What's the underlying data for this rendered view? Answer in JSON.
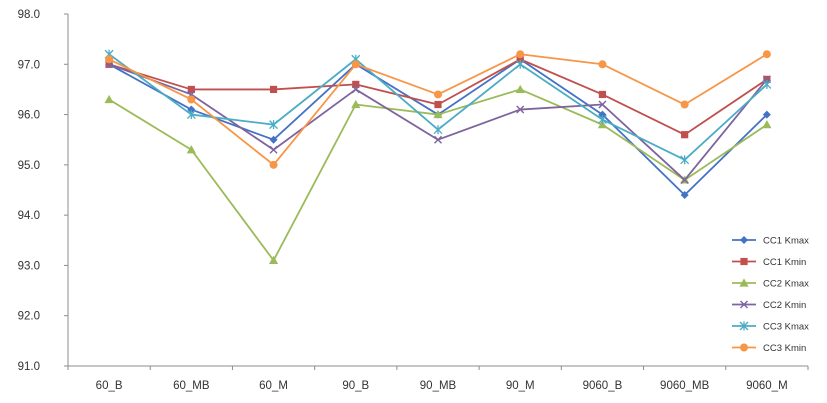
{
  "chart_data": {
    "type": "line",
    "title": "",
    "xlabel": "",
    "ylabel": "",
    "categories": [
      "60_B",
      "60_MB",
      "60_M",
      "90_B",
      "90_MB",
      "90_M",
      "9060_B",
      "9060_MB",
      "9060_M"
    ],
    "ylim": [
      91.0,
      98.0
    ],
    "y_ticks": [
      "91.0",
      "92.0",
      "93.0",
      "94.0",
      "95.0",
      "96.0",
      "97.0",
      "98.0"
    ],
    "grid": false,
    "legend_position": "bottom-right",
    "series": [
      {
        "name": "CC1 Kmax",
        "color": "#4472C4",
        "marker": "diamond",
        "values": [
          97.0,
          96.1,
          95.5,
          97.0,
          96.0,
          97.1,
          96.0,
          94.4,
          96.0
        ]
      },
      {
        "name": "CC1 Kmin",
        "color": "#C0504D",
        "marker": "square",
        "values": [
          97.0,
          96.5,
          96.5,
          96.6,
          96.2,
          97.1,
          96.4,
          95.6,
          96.7
        ]
      },
      {
        "name": "CC2 Kmax",
        "color": "#9BBB59",
        "marker": "triangle",
        "values": [
          96.3,
          95.3,
          93.1,
          96.2,
          96.0,
          96.5,
          95.8,
          94.7,
          95.8
        ]
      },
      {
        "name": "CC2 Kmin",
        "color": "#7E649E",
        "marker": "x",
        "values": [
          97.0,
          96.4,
          95.3,
          96.5,
          95.5,
          96.1,
          96.2,
          94.7,
          96.7
        ]
      },
      {
        "name": "CC3 Kmax",
        "color": "#4BACC6",
        "marker": "star",
        "values": [
          97.2,
          96.0,
          95.8,
          97.1,
          95.7,
          97.0,
          95.9,
          95.1,
          96.6
        ]
      },
      {
        "name": "CC3 Kmin",
        "color": "#F79646",
        "marker": "circle",
        "values": [
          97.1,
          96.3,
          95.0,
          97.0,
          96.4,
          97.2,
          97.0,
          96.2,
          97.2
        ]
      }
    ]
  }
}
